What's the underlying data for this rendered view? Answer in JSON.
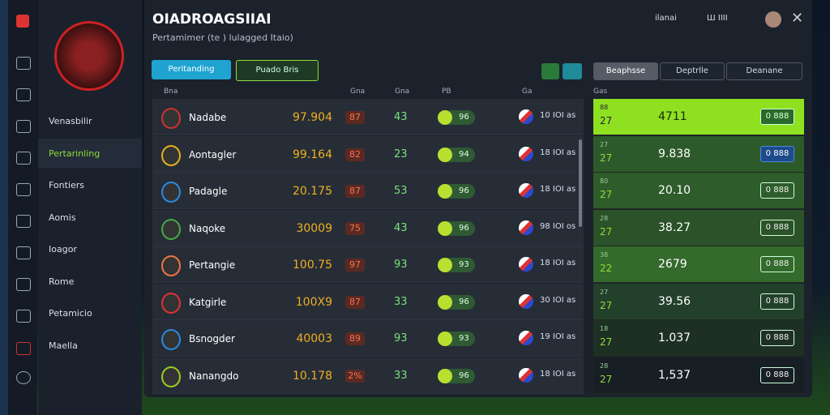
{
  "header": {
    "title": "OIADROAGSIIAI",
    "subtitle": "Pertamimer (te ) lulagged Itaio)",
    "status": "ilanai",
    "account": "Ш IIII"
  },
  "sidebar": {
    "items": [
      "Venasbilir",
      "Pertarinling",
      "Fontiers",
      "Aomis",
      "Ioagor",
      "Rome",
      "Petamicio",
      "Maella"
    ],
    "active": 1
  },
  "tabs": [
    "Peritanding",
    "Puado Bris"
  ],
  "right_tabs": [
    "Beaphsse",
    "Deptrlle",
    "Deanane"
  ],
  "table": {
    "headers": [
      "Bna",
      "Gna",
      "Gna",
      "PB",
      "Ga"
    ],
    "rows": [
      [
        "Nadabe",
        "97.904",
        "87",
        "43",
        "96",
        "10 IOI as"
      ],
      [
        "Aontagler",
        "99.164",
        "82",
        "23",
        "94",
        "18 IOI as"
      ],
      [
        "Padagle",
        "20.175",
        "87",
        "53",
        "96",
        "18 IOI as"
      ],
      [
        "Naqoke",
        "30009",
        "75",
        "43",
        "96",
        "98 IOI os"
      ],
      [
        "Pertangie",
        "100.75",
        "97",
        "93",
        "93",
        "18 IOI as"
      ],
      [
        "Katgirle",
        "100X9",
        "87",
        "33",
        "96",
        "30 IOI as"
      ],
      [
        "Bsnogder",
        "40003",
        "89",
        "93",
        "93",
        "19 IOI as"
      ],
      [
        "Nanangdo",
        "10.178",
        "2%",
        "33",
        "96",
        "18 IOI as"
      ]
    ]
  },
  "odds": {
    "header": "Gas",
    "rows": [
      [
        "88",
        "27",
        "4711",
        "0 888"
      ],
      [
        "27",
        "27",
        "9.838",
        "0 888"
      ],
      [
        "80",
        "27",
        "20.10",
        "0 888"
      ],
      [
        "28",
        "27",
        "38.27",
        "0 888"
      ],
      [
        "38",
        "22",
        "2679",
        "0 888"
      ],
      [
        "27",
        "27",
        "39.56",
        "0 888"
      ],
      [
        "18",
        "27",
        "1.037",
        "0 888"
      ],
      [
        "28",
        "27",
        "1,537",
        "0 888"
      ]
    ]
  }
}
